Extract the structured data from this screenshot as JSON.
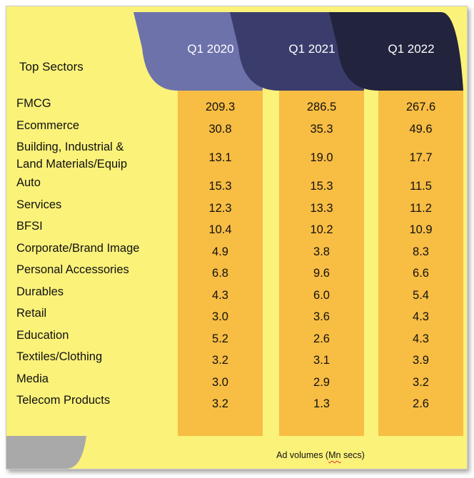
{
  "chart_data": {
    "type": "table",
    "row_header": "Top Sectors",
    "columns": [
      "Q1 2020",
      "Q1 2021",
      "Q1 2022"
    ],
    "rows": [
      {
        "label": "FMCG",
        "values": [
          "209.3",
          "286.5",
          "267.6"
        ]
      },
      {
        "label": "Ecommerce",
        "values": [
          "30.8",
          "35.3",
          "49.6"
        ]
      },
      {
        "label": "Building, Industrial &\nLand Materials/Equip",
        "label_lines": [
          "Building, Industrial &",
          "Land Materials/Equip"
        ],
        "values": [
          "13.1",
          "19.0",
          "17.7"
        ]
      },
      {
        "label": "Auto",
        "values": [
          "15.3",
          "15.3",
          "11.5"
        ]
      },
      {
        "label": "Services",
        "values": [
          "12.3",
          "13.3",
          "11.2"
        ]
      },
      {
        "label": "BFSI",
        "values": [
          "10.4",
          "10.2",
          "10.9"
        ]
      },
      {
        "label": "Corporate/Brand Image",
        "values": [
          "4.9",
          "3.8",
          "8.3"
        ]
      },
      {
        "label": "Personal Accessories",
        "values": [
          "6.8",
          "9.6",
          "6.6"
        ]
      },
      {
        "label": "Durables",
        "values": [
          "4.3",
          "6.0",
          "5.4"
        ]
      },
      {
        "label": "Retail",
        "values": [
          "3.0",
          "3.6",
          "4.3"
        ]
      },
      {
        "label": "Education",
        "values": [
          "5.2",
          "2.6",
          "4.3"
        ]
      },
      {
        "label": "Textiles/Clothing",
        "values": [
          "3.2",
          "3.1",
          "3.9"
        ]
      },
      {
        "label": "Media",
        "values": [
          "3.0",
          "2.9",
          "3.2"
        ]
      },
      {
        "label": "Telecom Products",
        "values": [
          "3.2",
          "1.3",
          "2.6"
        ]
      }
    ],
    "footnote_prefix": "Ad volumes (",
    "footnote_underlined": "Mn",
    "footnote_suffix": " secs)"
  },
  "colors": {
    "background": "#fbf27a",
    "column_fill": "#f8bd43",
    "tab_2020": "#6d72ab",
    "tab_2021": "#3a3d6c",
    "tab_2022": "#22233d",
    "footer_tab": "#a9a9a9"
  }
}
